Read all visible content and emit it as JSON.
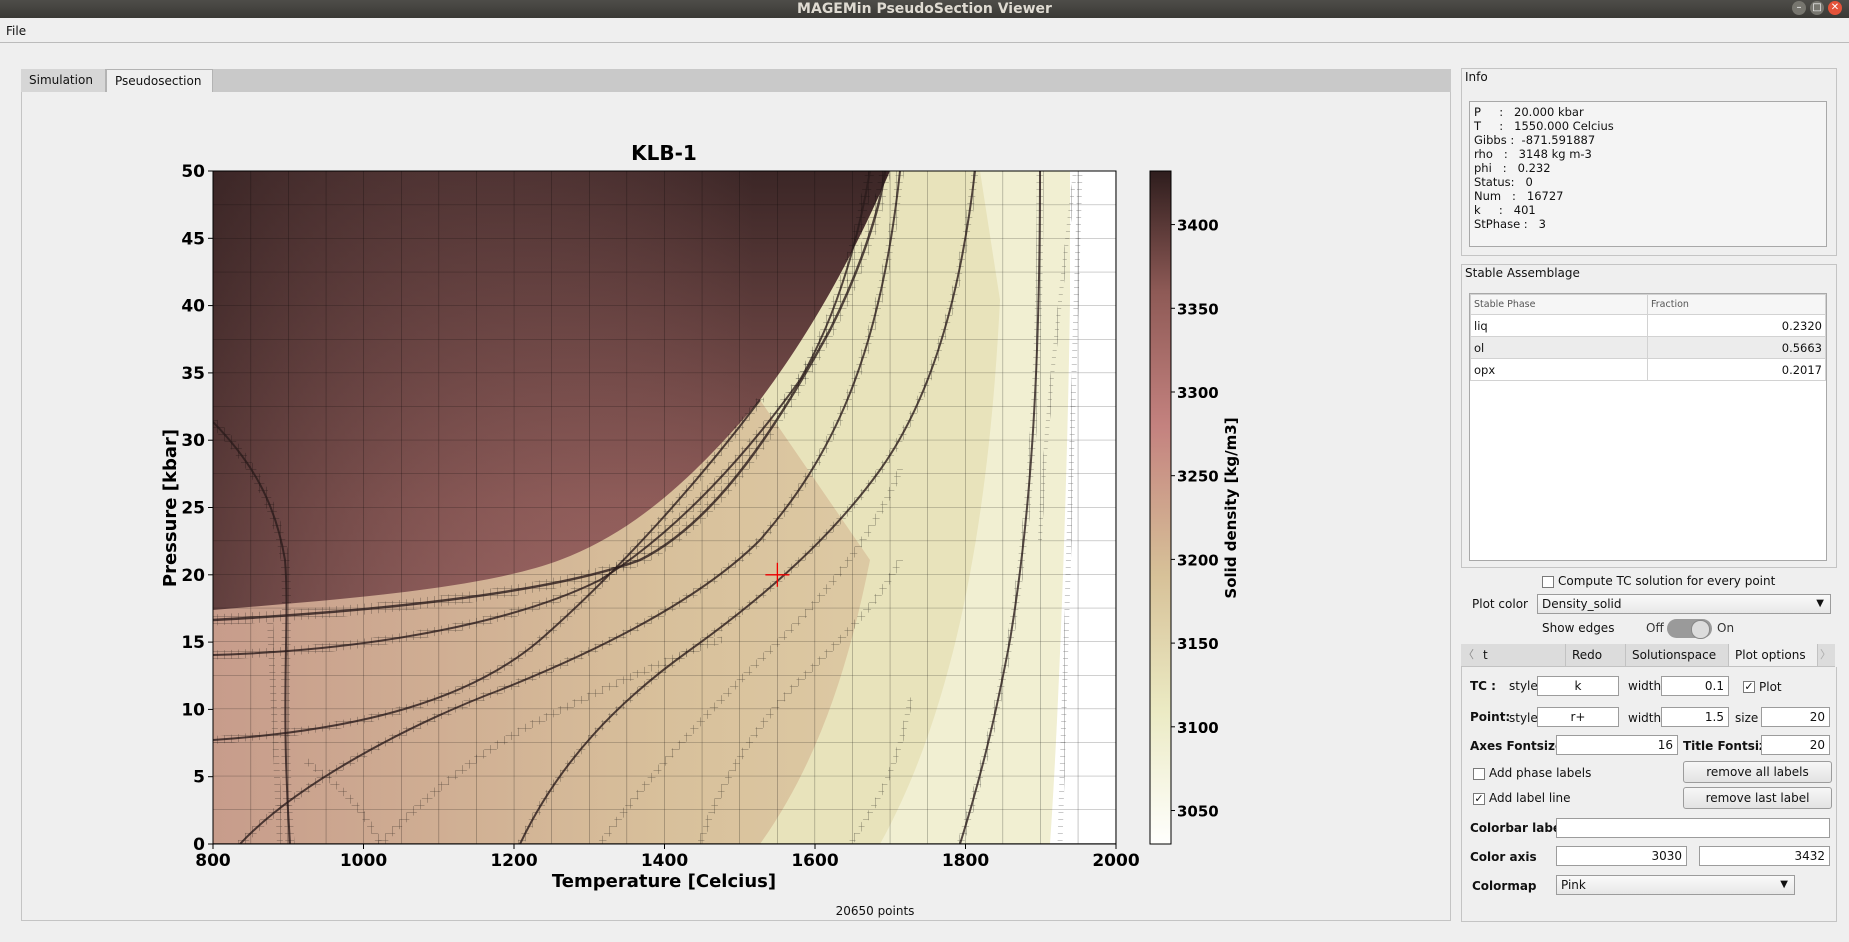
{
  "window": {
    "title": "MAGEMin PseudoSection Viewer"
  },
  "menu": {
    "file": "File"
  },
  "tabs": {
    "simulation": "Simulation",
    "pseudosection": "Pseudosection"
  },
  "plot": {
    "title": "KLB-1",
    "xlabel": "Temperature [Celcius]",
    "ylabel": "Pressure [kbar]",
    "colorbar_label": "Solid density [kg/m3]",
    "points_text": "20650 points"
  },
  "chart_data": {
    "type": "heatmap",
    "title": "KLB-1",
    "xlabel": "Temperature [Celcius]",
    "ylabel": "Pressure [kbar]",
    "xlim": [
      800,
      2000
    ],
    "ylim": [
      0,
      50
    ],
    "x_ticks": [
      "800",
      "1000",
      "1200",
      "1400",
      "1600",
      "1800",
      "2000"
    ],
    "y_ticks": [
      "0",
      "5",
      "10",
      "15",
      "20",
      "25",
      "30",
      "35",
      "40",
      "45",
      "50"
    ],
    "colorbar": {
      "label": "Solid density [kg/m3]",
      "ticks": [
        "3050",
        "3100",
        "3150",
        "3200",
        "3250",
        "3300",
        "3350",
        "3400"
      ],
      "range": [
        3030,
        3432
      ],
      "colormap": "Pink"
    },
    "marker": {
      "x": 1550,
      "y": 20,
      "style": "r+"
    }
  },
  "info": {
    "title": "Info",
    "lines": [
      "P     :   20.000 kbar",
      "T     :   1550.000 Celcius",
      "Gibbs :  -871.591887",
      "rho   :   3148 kg m-3",
      "phi   :   0.232",
      "Status:   0",
      "Num   :   16727",
      "k     :   401",
      "StPhase :   3"
    ]
  },
  "assemblage": {
    "title": "Stable Assemblage",
    "col_phase": "Stable Phase",
    "col_fraction": "Fraction",
    "rows": [
      {
        "phase": "liq",
        "fraction": "0.2320"
      },
      {
        "phase": "ol",
        "fraction": "0.5663"
      },
      {
        "phase": "opx",
        "fraction": "0.2017"
      }
    ]
  },
  "controls": {
    "compute_tc": "Compute TC solution for every point",
    "plot_color_label": "Plot color",
    "plot_color_value": "Density_solid",
    "show_edges": "Show edges",
    "off": "Off",
    "on": "On"
  },
  "bottom_tabs": [
    "t Boundaries",
    "Redo",
    "Solutionspace",
    "Plot options"
  ],
  "plot_options": {
    "tc_label": "TC :",
    "style_label": "style",
    "width_label": "width",
    "size_label": "size",
    "plot_label": "Plot",
    "tc_style": "k",
    "tc_width": "0.1",
    "point_label": "Point:",
    "point_style": "r+",
    "point_width": "1.5",
    "point_size": "20",
    "axes_fontsize_label": "Axes Fontsize",
    "axes_fontsize": "16",
    "title_fontsize_label": "Title Fontsize",
    "title_fontsize": "20",
    "add_phase_labels": "Add phase labels",
    "remove_all_labels": "remove all labels",
    "add_label_line": "Add label line",
    "remove_last_label": "remove last label",
    "colorbar_label": "Colorbar label",
    "colorbar_value": "",
    "color_axis_label": "Color axis",
    "color_axis_min": "3030",
    "color_axis_max": "3432",
    "colormap_label": "Colormap",
    "colormap_value": "Pink"
  }
}
